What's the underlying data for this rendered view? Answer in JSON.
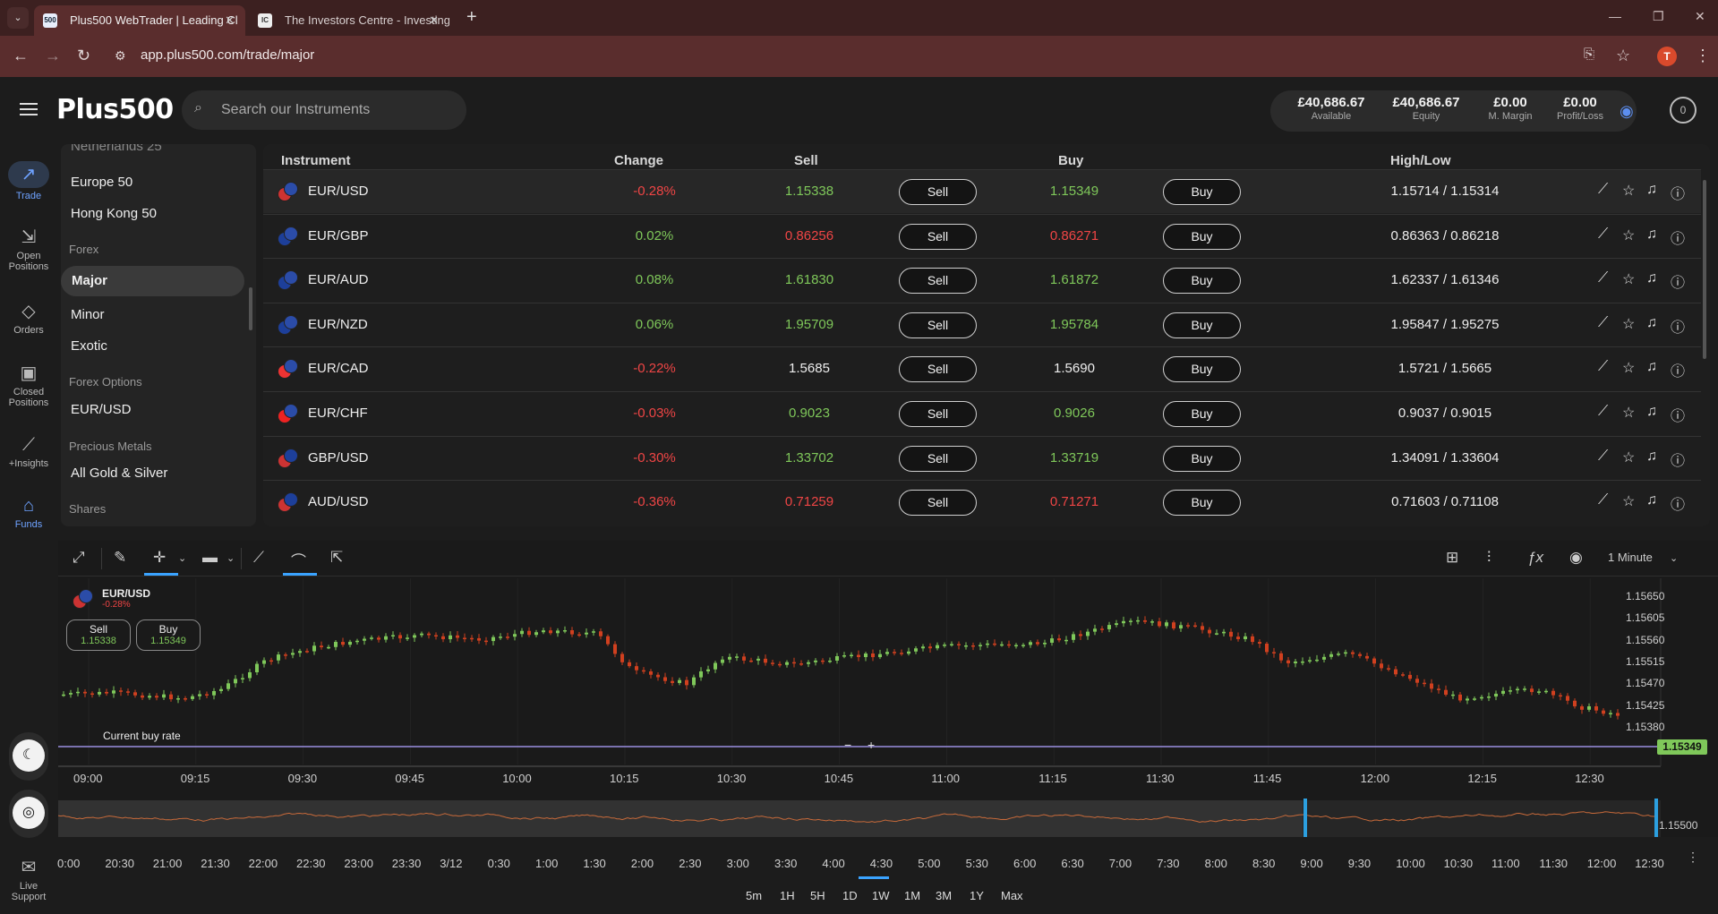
{
  "browser": {
    "tabs": [
      {
        "title": "Plus500 WebTrader | Leading Cl",
        "favicon": "500"
      },
      {
        "title": "The Investors Centre - Investing",
        "favicon": "IC"
      }
    ],
    "url": "app.plus500.com/trade/major",
    "profile_initial": "T"
  },
  "header": {
    "logo": "Plus500",
    "search_placeholder": "Search our Instruments",
    "account": [
      {
        "value": "£40,686.67",
        "label": "Available"
      },
      {
        "value": "£40,686.67",
        "label": "Equity"
      },
      {
        "value": "£0.00",
        "label": "M. Margin"
      },
      {
        "value": "£0.00",
        "label": "Profit/Loss"
      }
    ],
    "user_badge": "0"
  },
  "rail": [
    {
      "label": "Trade",
      "icon": "trend-icon"
    },
    {
      "label": "Open Positions",
      "icon": "open-positions-icon"
    },
    {
      "label": "Orders",
      "icon": "tag-icon"
    },
    {
      "label": "Closed Positions",
      "icon": "briefcase-icon"
    },
    {
      "label": "+Insights",
      "icon": "insights-icon"
    },
    {
      "label": "Funds",
      "icon": "bank-icon"
    },
    {
      "label": "Live Support",
      "icon": "chat-icon"
    }
  ],
  "instrument_nav": {
    "items": [
      {
        "kind": "item",
        "label": "Netherlands 25"
      },
      {
        "kind": "item",
        "label": "Europe 50"
      },
      {
        "kind": "item",
        "label": "Hong Kong 50"
      },
      {
        "kind": "section",
        "label": "Forex"
      },
      {
        "kind": "item",
        "label": "Major",
        "selected": true
      },
      {
        "kind": "item",
        "label": "Minor"
      },
      {
        "kind": "item",
        "label": "Exotic"
      },
      {
        "kind": "section",
        "label": "Forex Options"
      },
      {
        "kind": "item",
        "label": "EUR/USD"
      },
      {
        "kind": "section",
        "label": "Precious Metals"
      },
      {
        "kind": "item",
        "label": "All Gold & Silver"
      },
      {
        "kind": "section",
        "label": "Shares"
      }
    ]
  },
  "table": {
    "columns": {
      "instrument": "Instrument",
      "change": "Change",
      "sell": "Sell",
      "buy": "Buy",
      "highlow": "High/Low"
    },
    "sell_label": "Sell",
    "buy_label": "Buy",
    "rows": [
      {
        "name": "EUR/USD",
        "change": "-0.28%",
        "change_dir": "neg",
        "sell": "1.15338",
        "buy": "1.15349",
        "price_dir": "pos",
        "highlow": "1.15714 / 1.15314",
        "flag_a": "#2b4ca8",
        "flag_b": "#c33"
      },
      {
        "name": "EUR/GBP",
        "change": "0.02%",
        "change_dir": "pos",
        "sell": "0.86256",
        "buy": "0.86271",
        "price_dir": "neg",
        "highlow": "0.86363 / 0.86218",
        "flag_a": "#2b4ca8",
        "flag_b": "#1d3f9a"
      },
      {
        "name": "EUR/AUD",
        "change": "0.08%",
        "change_dir": "pos",
        "sell": "1.61830",
        "buy": "1.61872",
        "price_dir": "pos",
        "highlow": "1.62337 / 1.61346",
        "flag_a": "#2b4ca8",
        "flag_b": "#1d3f9a"
      },
      {
        "name": "EUR/NZD",
        "change": "0.06%",
        "change_dir": "pos",
        "sell": "1.95709",
        "buy": "1.95784",
        "price_dir": "pos",
        "highlow": "1.95847 / 1.95275",
        "flag_a": "#2b4ca8",
        "flag_b": "#1d3f9a"
      },
      {
        "name": "EUR/CAD",
        "change": "-0.22%",
        "change_dir": "neg",
        "sell": "1.5685",
        "buy": "1.5690",
        "price_dir": "neu",
        "highlow": "1.5721 / 1.5665",
        "flag_a": "#2b4ca8",
        "flag_b": "#e33"
      },
      {
        "name": "EUR/CHF",
        "change": "-0.03%",
        "change_dir": "neg",
        "sell": "0.9023",
        "buy": "0.9026",
        "price_dir": "pos",
        "highlow": "0.9037 / 0.9015",
        "flag_a": "#2b4ca8",
        "flag_b": "#e22"
      },
      {
        "name": "GBP/USD",
        "change": "-0.30%",
        "change_dir": "neg",
        "sell": "1.33702",
        "buy": "1.33719",
        "price_dir": "pos",
        "highlow": "1.34091 / 1.33604",
        "flag_a": "#1d3f9a",
        "flag_b": "#c33"
      },
      {
        "name": "AUD/USD",
        "change": "-0.36%",
        "change_dir": "neg",
        "sell": "0.71259",
        "buy": "0.71271",
        "price_dir": "neg",
        "highlow": "0.71603 / 0.71108",
        "flag_a": "#1d3f9a",
        "flag_b": "#c33"
      }
    ],
    "row_actions": [
      "chart-icon",
      "star-icon",
      "bell-icon",
      "info-icon"
    ]
  },
  "chart": {
    "instrument": "EUR/USD",
    "change": "-0.28%",
    "sell_label": "Sell",
    "sell_price": "1.15338",
    "buy_label": "Buy",
    "buy_price": "1.15349",
    "current_rate_label": "Current buy rate",
    "current_price_tag": "1.15349",
    "interval": "1 Minute",
    "y_ticks": [
      "1.15650",
      "1.15605",
      "1.15560",
      "1.15515",
      "1.15470",
      "1.15425",
      "1.15380"
    ],
    "x_ticks": [
      "09:00",
      "09:15",
      "09:30",
      "09:45",
      "10:00",
      "10:15",
      "10:30",
      "10:45",
      "11:00",
      "11:15",
      "11:30",
      "11:45",
      "12:00",
      "12:15",
      "12:30"
    ],
    "navigator_ticks": [
      "0:00",
      "20:30",
      "21:00",
      "21:30",
      "22:00",
      "22:30",
      "23:00",
      "23:30",
      "3/12",
      "0:30",
      "1:00",
      "1:30",
      "2:00",
      "2:30",
      "3:00",
      "3:30",
      "4:00",
      "4:30",
      "5:00",
      "5:30",
      "6:00",
      "6:30",
      "7:00",
      "7:30",
      "8:00",
      "8:30",
      "9:00",
      "9:30",
      "10:00",
      "10:30",
      "11:00",
      "11:30",
      "12:00",
      "12:30"
    ],
    "navigator_price": "1.15500",
    "ranges": [
      "5m",
      "1H",
      "5H",
      "1D",
      "1W",
      "1M",
      "3M",
      "1Y",
      "Max"
    ],
    "active_range": "5H"
  },
  "colors": {
    "up": "#7fc85a",
    "down": "#ef4545",
    "accent": "#3aa3ff",
    "candle_down": "#d0401f"
  }
}
